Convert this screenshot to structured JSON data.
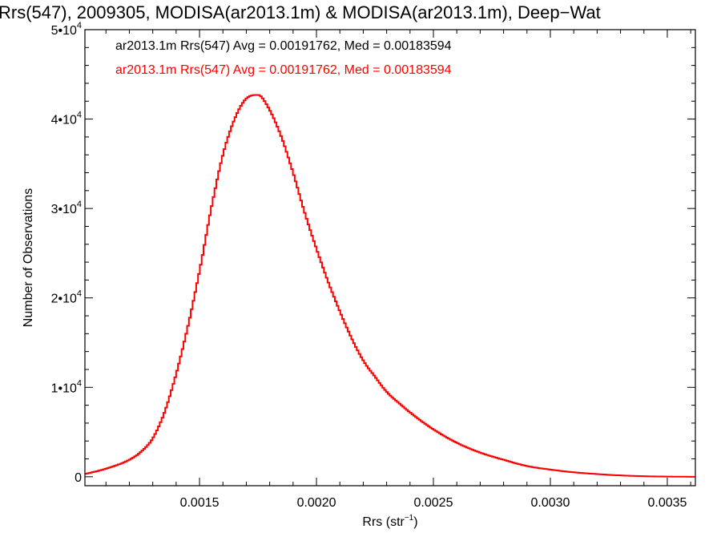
{
  "chart_data": {
    "type": "line",
    "title": "Rrs(547), 2009305, MODISA(ar2013.1m) & MODISA(ar2013.1m), Deep−Wat",
    "xlabel": "Rrs (str",
    "xlabel_sup": "−1",
    "xlabel_end": ")",
    "ylabel": "Number of Observations",
    "xlim": [
      0.00101,
      0.00362
    ],
    "ylim": [
      -1000,
      50000
    ],
    "x_ticks": [
      0.0015,
      0.002,
      0.0025,
      0.003,
      0.0035
    ],
    "x_tick_labels": [
      "0.0015",
      "0.0020",
      "0.0025",
      "0.0030",
      "0.0035"
    ],
    "y_ticks": [
      {
        "value": 0,
        "base": "0",
        "exp": ""
      },
      {
        "value": 10000,
        "base": "1•10",
        "exp": "4"
      },
      {
        "value": 20000,
        "base": "2•10",
        "exp": "4"
      },
      {
        "value": 30000,
        "base": "3•10",
        "exp": "4"
      },
      {
        "value": 40000,
        "base": "4•10",
        "exp": "4"
      },
      {
        "value": 50000,
        "base": "5•10",
        "exp": "4"
      }
    ],
    "legend": [
      {
        "text": "ar2013.1m Rrs(547) Avg = 0.00191762, Med = 0.00183594",
        "color": "#000000"
      },
      {
        "text": "ar2013.1m Rrs(547) Avg = 0.00191762, Med = 0.00183594",
        "color": "#ff0000"
      }
    ],
    "series": [
      {
        "color": "#ff0000",
        "style": "step",
        "x": [
          0.00101,
          0.0011,
          0.0012,
          0.00125,
          0.0013,
          0.00135,
          0.0014,
          0.00145,
          0.0015,
          0.00155,
          0.0016,
          0.00165,
          0.0017,
          0.00175,
          0.0018,
          0.00185,
          0.0019,
          0.00195,
          0.002,
          0.00205,
          0.0021,
          0.00215,
          0.0022,
          0.00225,
          0.0023,
          0.00235,
          0.0024,
          0.00245,
          0.0025,
          0.0026,
          0.0027,
          0.0028,
          0.0029,
          0.003,
          0.0031,
          0.0032,
          0.0033,
          0.0034,
          0.0035,
          0.0036
        ],
        "y": [
          300,
          900,
          1900,
          2800,
          4300,
          7200,
          11500,
          16800,
          23000,
          30000,
          36000,
          40000,
          42300,
          42700,
          41000,
          38000,
          34000,
          29500,
          25500,
          21800,
          18500,
          15500,
          13000,
          11200,
          9500,
          8300,
          7200,
          6200,
          5300,
          3800,
          2700,
          1900,
          1200,
          800,
          500,
          300,
          150,
          60,
          20,
          0
        ]
      }
    ]
  }
}
